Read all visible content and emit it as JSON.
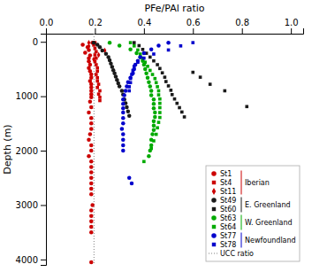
{
  "chart_data": {
    "type": "scatter",
    "xlabel": "PFe/PAl ratio",
    "ylabel": "Depth (m)",
    "xlim": [
      0.0,
      1.05
    ],
    "ylim": [
      4100,
      -150
    ],
    "xticks": [
      {
        "value": 0.0,
        "label": "0.0"
      },
      0.2,
      0.4,
      0.6,
      0.8,
      {
        "value": 1.0,
        "label": "1.0"
      }
    ],
    "yticks": [
      0,
      1000,
      2000,
      3000,
      4000
    ],
    "grid": false,
    "legend": "lower right",
    "reference_lines": [
      {
        "name": "UCC ratio",
        "x": 0.196,
        "color": "gray",
        "line_style": "dotted"
      }
    ],
    "series": [
      {
        "name": "St1",
        "color": "#cc0000",
        "marker": "circle",
        "x": [
          0.19,
          0.15,
          0.17,
          0.175,
          0.16,
          0.18,
          0.175,
          0.175,
          0.18,
          0.175,
          0.18,
          0.185,
          0.185,
          0.18,
          0.185,
          0.185,
          0.185,
          0.185,
          0.185,
          0.18,
          0.185,
          0.175,
          0.185,
          0.185,
          0.185,
          0.18,
          0.175,
          0.185,
          0.185,
          0.175,
          0.185,
          0.185,
          0.185,
          0.185,
          0.185,
          0.185,
          0.185,
          0.19,
          0.185,
          0.185,
          0.185,
          0.185,
          0.185,
          0.185
        ],
        "values": [
          15,
          55,
          100,
          150,
          200,
          250,
          300,
          360,
          420,
          480,
          540,
          600,
          660,
          720,
          780,
          840,
          900,
          960,
          1020,
          1100,
          1200,
          1300,
          1400,
          1500,
          1600,
          1700,
          1800,
          1900,
          2000,
          2100,
          2200,
          2300,
          2400,
          2500,
          2600,
          2700,
          2800,
          3000,
          3100,
          3200,
          3300,
          3400,
          3500,
          4050
        ]
      },
      {
        "name": "St4",
        "color": "#cc0000",
        "marker": "square",
        "x": [
          0.2,
          0.195,
          0.2,
          0.205,
          0.2,
          0.205,
          0.2,
          0.205,
          0.21,
          0.21,
          0.205,
          0.21,
          0.21,
          0.215,
          0.21,
          0.22,
          0.215,
          0.22,
          0.22
        ],
        "values": [
          15,
          60,
          120,
          180,
          240,
          300,
          360,
          420,
          480,
          540,
          600,
          660,
          720,
          780,
          840,
          900,
          960,
          1020,
          1080
        ]
      },
      {
        "name": "St11",
        "color": "#cc0000",
        "marker": "diamond",
        "x": [
          0.175,
          0.175,
          0.24,
          0.215,
          0.195
        ],
        "values": [
          15,
          80,
          160,
          240,
          320
        ]
      },
      {
        "name": "St49",
        "color": "#1a1a1a",
        "marker": "circle",
        "x": [
          0.195,
          0.21,
          0.22,
          0.23,
          0.245,
          0.255,
          0.26,
          0.265,
          0.27,
          0.275,
          0.28,
          0.285,
          0.29,
          0.295,
          0.3,
          0.31,
          0.315,
          0.32,
          0.325,
          0.33,
          0.335,
          0.34
        ],
        "values": [
          15,
          55,
          100,
          160,
          220,
          280,
          340,
          400,
          460,
          520,
          580,
          640,
          700,
          760,
          820,
          900,
          970,
          1060,
          1130,
          1200,
          1280,
          1360
        ]
      },
      {
        "name": "St60",
        "color": "#1a1a1a",
        "marker": "square",
        "x": [
          0.36,
          0.38,
          0.395,
          0.41,
          0.425,
          0.44,
          0.455,
          0.465,
          0.475,
          0.485,
          0.49,
          0.5,
          0.51,
          0.515,
          0.525,
          0.535,
          0.545,
          0.555,
          0.565,
          0.6,
          0.63,
          0.67,
          0.73,
          0.82
        ],
        "values": [
          15,
          70,
          140,
          210,
          280,
          350,
          420,
          490,
          570,
          650,
          730,
          810,
          890,
          970,
          1050,
          1130,
          1210,
          1290,
          1380,
          560,
          650,
          780,
          900,
          1190
        ]
      },
      {
        "name": "St63",
        "color": "#00aa00",
        "marker": "circle",
        "x": [
          0.26,
          0.3,
          0.345,
          0.37,
          0.385,
          0.395,
          0.4,
          0.405,
          0.41,
          0.415,
          0.42,
          0.425,
          0.43,
          0.43,
          0.44,
          0.44,
          0.44,
          0.445,
          0.445,
          0.44,
          0.44,
          0.44,
          0.435,
          0.43,
          0.43,
          0.425,
          0.42
        ],
        "values": [
          15,
          70,
          140,
          210,
          280,
          350,
          420,
          500,
          580,
          660,
          740,
          820,
          900,
          980,
          1060,
          1140,
          1220,
          1300,
          1380,
          1460,
          1540,
          1620,
          1700,
          1800,
          1900,
          2000,
          2100
        ]
      },
      {
        "name": "St64",
        "color": "#00aa00",
        "marker": "square",
        "x": [
          0.345,
          0.36,
          0.375,
          0.385,
          0.395,
          0.405,
          0.415,
          0.425,
          0.435,
          0.445,
          0.45,
          0.455,
          0.46,
          0.46,
          0.465,
          0.465,
          0.465,
          0.465,
          0.465,
          0.46,
          0.455,
          0.45,
          0.44,
          0.43,
          0.4
        ],
        "values": [
          15,
          75,
          150,
          225,
          300,
          375,
          450,
          525,
          600,
          675,
          750,
          825,
          900,
          975,
          1050,
          1130,
          1210,
          1300,
          1390,
          1480,
          1580,
          1700,
          1820,
          1960,
          2200
        ]
      },
      {
        "name": "St77",
        "color": "#0000cc",
        "marker": "circle",
        "x": [
          0.5,
          0.46,
          0.43,
          0.4,
          0.385,
          0.375,
          0.365,
          0.36,
          0.355,
          0.345,
          0.335,
          0.33,
          0.325,
          0.32,
          0.315,
          0.315,
          0.315,
          0.315,
          0.315,
          0.315,
          0.31,
          0.315,
          0.315,
          0.315,
          0.315,
          0.34,
          0.35
        ],
        "values": [
          15,
          70,
          140,
          210,
          280,
          350,
          420,
          500,
          580,
          660,
          740,
          820,
          900,
          980,
          1060,
          1140,
          1220,
          1300,
          1400,
          1500,
          1600,
          1700,
          1800,
          1900,
          2000,
          2500,
          2600
        ]
      },
      {
        "name": "St78",
        "color": "#0000cc",
        "marker": "square",
        "x": [
          0.6,
          0.55,
          0.5,
          0.44,
          0.4,
          0.375,
          0.36,
          0.355,
          0.35,
          0.345,
          0.345,
          0.34,
          0.34
        ],
        "values": [
          15,
          75,
          150,
          225,
          300,
          375,
          450,
          525,
          600,
          675,
          750,
          825,
          900
        ]
      }
    ],
    "legend_groups": [
      {
        "label": "Iberian",
        "series": [
          "St1",
          "St4",
          "St11"
        ],
        "color": "#cc0000"
      },
      {
        "label": "E. Greenland",
        "series": [
          "St49",
          "St60"
        ],
        "color": "#1a1a1a"
      },
      {
        "label": "W. Greenland",
        "series": [
          "St63",
          "St64"
        ],
        "color": "#00aa00"
      },
      {
        "label": "Newfoundland",
        "series": [
          "St77",
          "St78"
        ],
        "color": "#0000cc"
      }
    ]
  }
}
